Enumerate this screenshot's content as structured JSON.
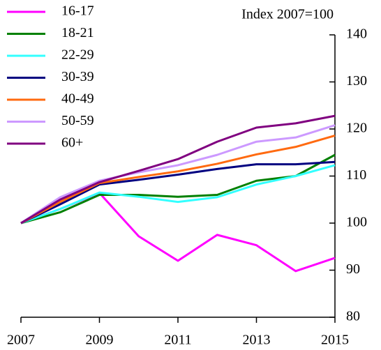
{
  "chart_data": {
    "type": "line",
    "annotation": "Index 2007=100",
    "x": [
      2007,
      2008,
      2009,
      2010,
      2011,
      2012,
      2013,
      2014,
      2015
    ],
    "xlim": [
      2007,
      2015
    ],
    "xticks": [
      2007,
      2009,
      2011,
      2013,
      2015
    ],
    "ylim": [
      80,
      140
    ],
    "yticks": [
      80,
      90,
      100,
      110,
      120,
      130,
      140
    ],
    "series": [
      {
        "name": "16-17",
        "color": "#ff00ff",
        "values": [
          100,
          103,
          106.4,
          97.2,
          92,
          97.5,
          95.3,
          89.8,
          92.6
        ]
      },
      {
        "name": "18-21",
        "color": "#008000",
        "values": [
          100,
          102.3,
          106,
          106,
          105.6,
          106,
          109,
          110,
          114.5
        ]
      },
      {
        "name": "22-29",
        "color": "#33ffff",
        "values": [
          100,
          103,
          106.5,
          105.6,
          104.5,
          105.5,
          108.2,
          110,
          112.3
        ]
      },
      {
        "name": "30-39",
        "color": "#000080",
        "values": [
          100,
          104,
          108.2,
          109.2,
          110.3,
          111.5,
          112.5,
          112.5,
          113
        ]
      },
      {
        "name": "40-49",
        "color": "#ff6a10",
        "values": [
          100,
          104.5,
          108.5,
          109.8,
          111,
          112.6,
          114.6,
          116.2,
          118.6
        ]
      },
      {
        "name": "50-59",
        "color": "#cc99ff",
        "values": [
          100,
          105.5,
          109,
          110.8,
          112.3,
          114.5,
          117.3,
          118.2,
          120.8
        ]
      },
      {
        "name": "60+",
        "color": "#800080",
        "values": [
          100,
          105,
          108.7,
          111.1,
          113.6,
          117.3,
          120.3,
          121.2,
          122.8
        ]
      }
    ]
  }
}
